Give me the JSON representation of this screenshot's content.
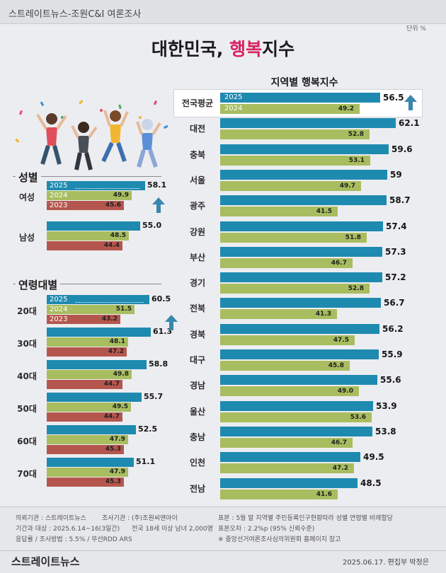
{
  "header": {
    "text": "스트레이트뉴스-조원C&I 여론조사",
    "unit": "단위 %"
  },
  "title": {
    "main": "대한민국, ",
    "accent": "행복",
    "tail": "지수"
  },
  "colors": {
    "y2025": "#1e8ab0",
    "y2024": "#a8bd5f",
    "y2023": "#b5564e",
    "arrow": "#3a86ad"
  },
  "chart_data": [
    {
      "type": "bar",
      "title": "성별",
      "categories": [
        "여성",
        "남성"
      ],
      "legend_years": [
        "2025",
        "2024",
        "2023"
      ],
      "series": [
        {
          "name": "2025",
          "values": [
            58.1,
            55.0
          ],
          "labels": [
            "58.1",
            "55.0"
          ]
        },
        {
          "name": "2024",
          "values": [
            49.9,
            48.5
          ],
          "labels": [
            "49.9",
            "48.5"
          ]
        },
        {
          "name": "2023",
          "values": [
            45.6,
            44.4
          ],
          "labels": [
            "45.6",
            "44.4"
          ]
        }
      ]
    },
    {
      "type": "bar",
      "title": "연령대별",
      "categories": [
        "20대",
        "30대",
        "40대",
        "50대",
        "60대",
        "70대"
      ],
      "legend_years": [
        "2025",
        "2024",
        "2023"
      ],
      "series": [
        {
          "name": "2025",
          "values": [
            60.5,
            61.3,
            58.8,
            55.7,
            52.5,
            51.1
          ],
          "labels": [
            "60.5",
            "61.3",
            "58.8",
            "55.7",
            "52.5",
            "51.1"
          ]
        },
        {
          "name": "2024",
          "values": [
            51.5,
            48.1,
            49.8,
            49.5,
            47.9,
            47.9
          ],
          "labels": [
            "51.5",
            "48.1",
            "49.8",
            "49.5",
            "47.9",
            "47.9"
          ]
        },
        {
          "name": "2023",
          "values": [
            43.2,
            47.2,
            44.7,
            44.7,
            45.3,
            45.3
          ],
          "labels": [
            "43.2",
            "47.2",
            "44.7",
            "44.7",
            "45.3",
            "45.3"
          ]
        }
      ]
    },
    {
      "type": "bar",
      "title": "지역별 행복지수",
      "categories": [
        "전국평균",
        "대전",
        "충북",
        "서울",
        "광주",
        "강원",
        "부산",
        "경기",
        "전북",
        "경북",
        "대구",
        "경남",
        "울산",
        "충남",
        "인천",
        "전남"
      ],
      "legend_years": [
        "2025",
        "2024"
      ],
      "series": [
        {
          "name": "2025",
          "values": [
            56.5,
            62.1,
            59.6,
            59,
            58.7,
            57.4,
            57.3,
            57.2,
            56.7,
            56.2,
            55.9,
            55.6,
            53.9,
            53.8,
            49.5,
            48.5
          ],
          "labels": [
            "56.5",
            "62.1",
            "59.6",
            "59",
            "58.7",
            "57.4",
            "57.3",
            "57.2",
            "56.7",
            "56.2",
            "55.9",
            "55.6",
            "53.9",
            "53.8",
            "49.5",
            "48.5"
          ]
        },
        {
          "name": "2024",
          "values": [
            49.2,
            52.8,
            53.1,
            49.7,
            41.5,
            51.8,
            46.7,
            52.8,
            41.3,
            47.5,
            45.8,
            49.0,
            53.6,
            46.7,
            47.2,
            41.6
          ],
          "labels": [
            "49.2",
            "52.8",
            "53.1",
            "49.7",
            "41.5",
            "51.8",
            "46.7",
            "52.8",
            "41.3",
            "47.5",
            "45.8",
            "49.0",
            "53.6",
            "46.7",
            "47.2",
            "41.6"
          ]
        }
      ]
    }
  ],
  "footer": {
    "left": [
      "의뢰기관 : 스트레이트뉴스",
      "기간과 대상 : 2025.6.14~16(3일간)",
      "응답률 / 조사방법 : 5.5% / 무선RDD ARS"
    ],
    "mid": [
      "조사기관 : (주)조원씨앤아이",
      "전국 18세 이상 남녀 2,000명"
    ],
    "right": [
      "표본 : 5월 말 지역별 주민등록인구현황따라 성별 연령별 비례할당",
      "표본오차 : 2.2%p (95% 신뢰수준)",
      "※ 중앙선거여론조사심의위원회 홈페이지 참고"
    ],
    "brand": "스트레이트뉴스",
    "date": "2025.06.17. 편집부 박정은"
  }
}
